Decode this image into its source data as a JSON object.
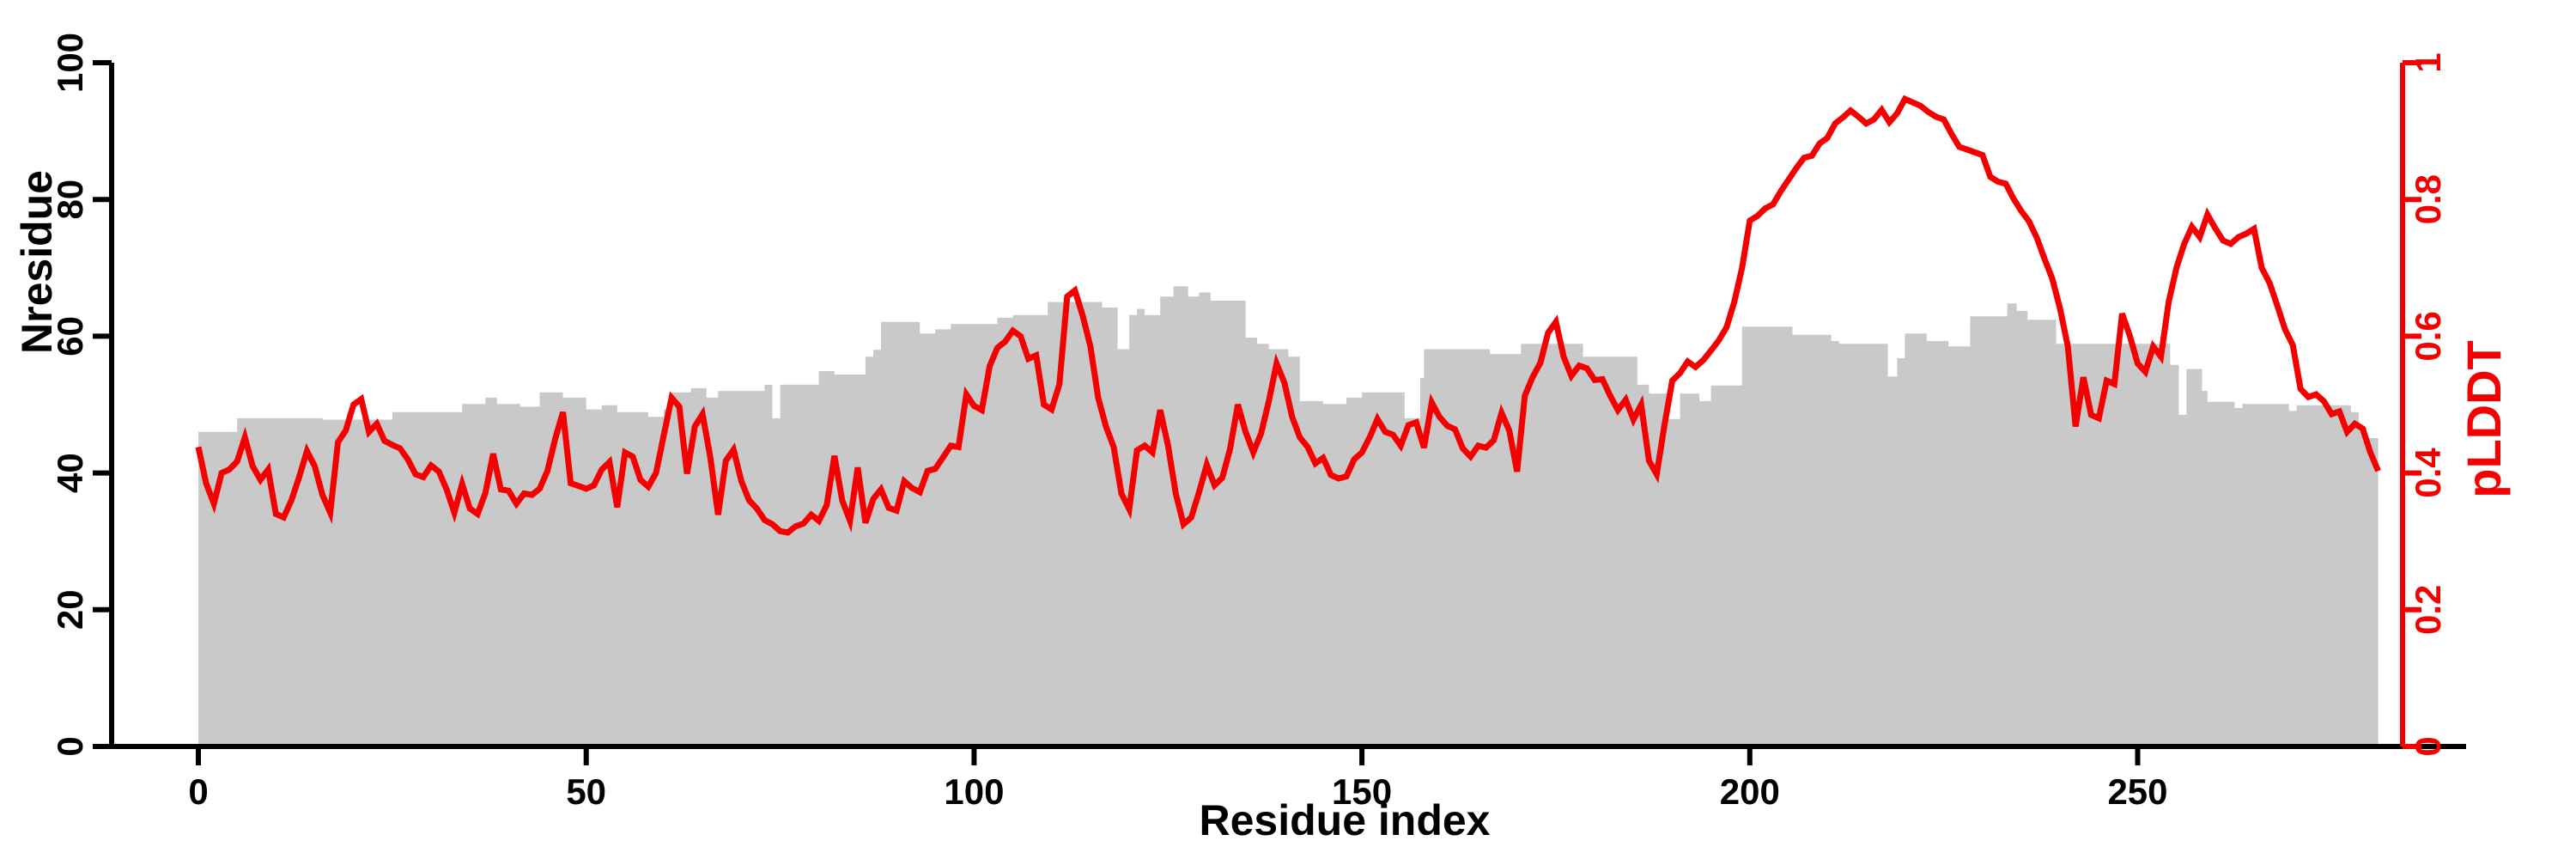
{
  "figure": {
    "background": "#FFFFFF",
    "xlabel": "Residue index",
    "ylabel_left": "Nresidue",
    "ylabel_right": "pLDDT"
  },
  "chart_data": {
    "type": "line",
    "title": "",
    "xlabel": "Residue index",
    "ylabel": "Nresidue",
    "ylabel_right": "pLDDT",
    "grid": false,
    "legend": "none",
    "x_axis": {
      "label": "Residue index",
      "ticks": [
        0,
        50,
        100,
        150,
        200,
        250
      ],
      "tick_labels": [
        "0",
        "50",
        "100",
        "150",
        "200",
        "250"
      ],
      "data_range": [
        0,
        281
      ]
    },
    "left_axis": {
      "label": "Nresidue",
      "range": [
        0,
        100
      ],
      "ticks": [
        0,
        20,
        40,
        60,
        80,
        100
      ],
      "tick_labels": [
        "0",
        "20",
        "40",
        "60",
        "80",
        "100"
      ],
      "color": "#000000"
    },
    "right_axis": {
      "label": "pLDDT",
      "range": [
        0,
        1
      ],
      "ticks": [
        0,
        0.2,
        0.4,
        0.6,
        0.8,
        1
      ],
      "tick_labels": [
        "0",
        "0.2",
        "0.4",
        "0.6",
        "0.8",
        "1"
      ],
      "color": "#F40000"
    },
    "colors": {
      "plddt_line": "#F40000",
      "nresidue_area": "#C9C9C9",
      "axis": "#000000"
    },
    "series": [
      {
        "name": "Nresidue",
        "type": "area-steps",
        "axis": "left",
        "color": "#C9C9C9",
        "steps": [
          [
            0,
            5,
            46
          ],
          [
            5,
            16,
            48
          ],
          [
            16,
            25,
            47.8
          ],
          [
            25,
            34,
            48.9
          ],
          [
            34,
            37,
            50.1
          ],
          [
            37,
            38.5,
            51
          ],
          [
            38.5,
            41.5,
            50.1
          ],
          [
            41.5,
            44,
            49.7
          ],
          [
            44,
            47,
            51.8
          ],
          [
            47,
            50,
            51
          ],
          [
            50,
            52,
            49.3
          ],
          [
            52,
            54,
            49.9
          ],
          [
            54,
            58,
            48.9
          ],
          [
            58,
            60,
            48.2
          ],
          [
            60,
            61,
            49.3
          ],
          [
            61,
            63.5,
            51.8
          ],
          [
            63.5,
            65.5,
            52.4
          ],
          [
            65.5,
            67,
            51
          ],
          [
            67,
            73,
            52
          ],
          [
            73,
            74,
            52.9
          ],
          [
            74,
            75,
            48
          ],
          [
            75,
            80,
            52.9
          ],
          [
            80,
            82,
            54.9
          ],
          [
            82,
            86,
            54.4
          ],
          [
            86,
            87,
            57
          ],
          [
            87,
            88,
            58
          ],
          [
            88,
            93,
            62.1
          ],
          [
            93,
            95,
            60.4
          ],
          [
            95,
            97,
            61
          ],
          [
            97,
            103,
            61.8
          ],
          [
            103,
            105,
            62.7
          ],
          [
            105,
            109.5,
            63.1
          ],
          [
            109.5,
            116.5,
            65
          ],
          [
            116.5,
            118.5,
            64.2
          ],
          [
            118.5,
            120,
            58.1
          ],
          [
            120,
            121,
            63.1
          ],
          [
            121,
            122,
            64
          ],
          [
            122,
            124,
            63.1
          ],
          [
            124,
            125.7,
            65.8
          ],
          [
            125.7,
            127.6,
            67.3
          ],
          [
            127.6,
            129,
            65.8
          ],
          [
            129,
            130.5,
            66.4
          ],
          [
            130.5,
            135,
            65.2
          ],
          [
            135,
            136.5,
            59.8
          ],
          [
            136.5,
            138,
            58.9
          ],
          [
            138,
            140.5,
            58.1
          ],
          [
            140.5,
            142,
            57
          ],
          [
            142,
            145,
            50.5
          ],
          [
            145,
            148,
            50.1
          ],
          [
            148,
            150,
            51
          ],
          [
            150,
            155.5,
            51.8
          ],
          [
            155.5,
            157.5,
            48
          ],
          [
            157.5,
            158,
            53.9
          ],
          [
            158,
            166.5,
            58.1
          ],
          [
            166.5,
            170.5,
            57.4
          ],
          [
            170.5,
            178.5,
            58.9
          ],
          [
            178.5,
            185.5,
            57
          ],
          [
            185.5,
            187,
            52.9
          ],
          [
            187,
            189.5,
            51.6
          ],
          [
            189.5,
            191,
            47.9
          ],
          [
            191,
            193.5,
            51.6
          ],
          [
            193.5,
            195,
            50.5
          ],
          [
            195,
            199,
            52.8
          ],
          [
            199,
            205.5,
            61.4
          ],
          [
            205.5,
            210.5,
            60.2
          ],
          [
            210.5,
            211.5,
            59.3
          ],
          [
            211.5,
            217.8,
            58.9
          ],
          [
            217.8,
            219,
            54.1
          ],
          [
            219,
            220,
            56.8
          ],
          [
            220,
            222.8,
            60.4
          ],
          [
            222.8,
            225.6,
            59.3
          ],
          [
            225.6,
            228.4,
            58.5
          ],
          [
            228.4,
            233.2,
            62.9
          ],
          [
            233.2,
            234.4,
            64.8
          ],
          [
            234.4,
            235.8,
            63.7
          ],
          [
            235.8,
            239.5,
            62.4
          ],
          [
            239.5,
            254.2,
            58.9
          ],
          [
            254.2,
            255.3,
            55.8
          ],
          [
            255.3,
            256.3,
            48.5
          ],
          [
            256.3,
            258.3,
            55.2
          ],
          [
            258.3,
            259,
            52
          ],
          [
            259,
            262.5,
            50.4
          ],
          [
            262.5,
            263.5,
            49.5
          ],
          [
            263.5,
            269.5,
            50.1
          ],
          [
            269.5,
            270.5,
            49.1
          ],
          [
            270.5,
            277.5,
            49.9
          ],
          [
            277.5,
            278.5,
            48.9
          ],
          [
            278.5,
            279.5,
            46.7
          ],
          [
            279.5,
            281,
            45.1
          ]
        ]
      },
      {
        "name": "pLDDT",
        "type": "line",
        "axis": "right",
        "color": "#F40000",
        "x_start": 0,
        "x_step": 1,
        "values": [
          0.438,
          0.385,
          0.355,
          0.4,
          0.405,
          0.417,
          0.452,
          0.41,
          0.39,
          0.405,
          0.34,
          0.335,
          0.36,
          0.394,
          0.432,
          0.41,
          0.368,
          0.342,
          0.445,
          0.462,
          0.5,
          0.508,
          0.46,
          0.472,
          0.447,
          0.441,
          0.436,
          0.42,
          0.398,
          0.394,
          0.411,
          0.402,
          0.376,
          0.342,
          0.384,
          0.348,
          0.34,
          0.371,
          0.428,
          0.376,
          0.374,
          0.355,
          0.37,
          0.368,
          0.377,
          0.403,
          0.45,
          0.489,
          0.385,
          0.381,
          0.377,
          0.382,
          0.405,
          0.416,
          0.35,
          0.43,
          0.424,
          0.39,
          0.38,
          0.4,
          0.455,
          0.51,
          0.497,
          0.399,
          0.468,
          0.486,
          0.423,
          0.339,
          0.418,
          0.434,
          0.388,
          0.36,
          0.348,
          0.331,
          0.325,
          0.315,
          0.313,
          0.322,
          0.326,
          0.339,
          0.33,
          0.353,
          0.425,
          0.36,
          0.33,
          0.408,
          0.327,
          0.362,
          0.376,
          0.349,
          0.345,
          0.388,
          0.378,
          0.372,
          0.403,
          0.406,
          0.423,
          0.44,
          0.438,
          0.515,
          0.498,
          0.492,
          0.556,
          0.583,
          0.592,
          0.608,
          0.6,
          0.567,
          0.572,
          0.5,
          0.493,
          0.53,
          0.658,
          0.667,
          0.63,
          0.585,
          0.51,
          0.468,
          0.438,
          0.37,
          0.347,
          0.433,
          0.44,
          0.43,
          0.492,
          0.44,
          0.37,
          0.325,
          0.335,
          0.372,
          0.412,
          0.382,
          0.393,
          0.435,
          0.5,
          0.46,
          0.43,
          0.458,
          0.505,
          0.56,
          0.532,
          0.482,
          0.452,
          0.438,
          0.414,
          0.422,
          0.397,
          0.392,
          0.395,
          0.42,
          0.43,
          0.452,
          0.479,
          0.46,
          0.456,
          0.44,
          0.47,
          0.474,
          0.437,
          0.503,
          0.482,
          0.469,
          0.464,
          0.436,
          0.424,
          0.44,
          0.437,
          0.448,
          0.488,
          0.462,
          0.402,
          0.513,
          0.54,
          0.561,
          0.605,
          0.621,
          0.57,
          0.542,
          0.557,
          0.553,
          0.536,
          0.537,
          0.513,
          0.492,
          0.507,
          0.478,
          0.5,
          0.418,
          0.398,
          0.47,
          0.535,
          0.546,
          0.563,
          0.555,
          0.565,
          0.579,
          0.594,
          0.613,
          0.65,
          0.7,
          0.769,
          0.776,
          0.787,
          0.793,
          0.812,
          0.829,
          0.846,
          0.861,
          0.864,
          0.882,
          0.89,
          0.911,
          0.92,
          0.93,
          0.921,
          0.911,
          0.917,
          0.931,
          0.913,
          0.926,
          0.947,
          0.942,
          0.937,
          0.928,
          0.921,
          0.917,
          0.896,
          0.877,
          0.873,
          0.869,
          0.865,
          0.833,
          0.826,
          0.823,
          0.801,
          0.783,
          0.768,
          0.744,
          0.713,
          0.684,
          0.64,
          0.585,
          0.468,
          0.54,
          0.485,
          0.48,
          0.535,
          0.53,
          0.633,
          0.6,
          0.56,
          0.548,
          0.585,
          0.57,
          0.65,
          0.7,
          0.735,
          0.76,
          0.745,
          0.778,
          0.758,
          0.74,
          0.735,
          0.745,
          0.75,
          0.757,
          0.7,
          0.678,
          0.645,
          0.61,
          0.587,
          0.523,
          0.511,
          0.515,
          0.505,
          0.486,
          0.49,
          0.46,
          0.472,
          0.465,
          0.43,
          0.403
        ]
      }
    ]
  }
}
